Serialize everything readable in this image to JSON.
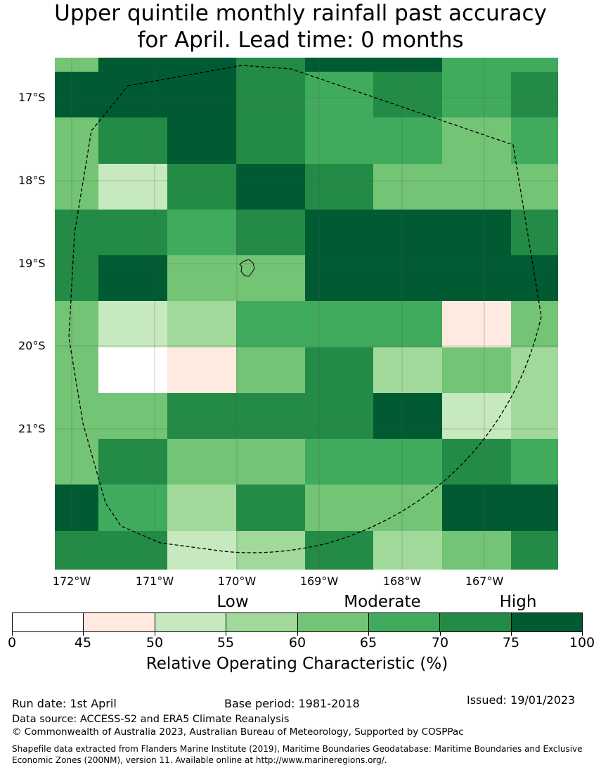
{
  "title_line1": "Upper quintile monthly rainfall past accuracy",
  "title_line2": "for April. Lead time: 0 months",
  "map": {
    "lat_labels": [
      "17°S",
      "18°S",
      "19°S",
      "20°S",
      "21°S"
    ],
    "lon_labels": [
      "172°W",
      "171°W",
      "170°W",
      "169°W",
      "168°W",
      "167°W"
    ],
    "bins": [
      "0-45",
      "45-50",
      "50-55",
      "55-60",
      "60-65",
      "65-70",
      "70-75",
      "75-100"
    ],
    "grid_cells": [
      [
        4,
        7,
        7,
        6,
        7,
        7,
        5,
        5
      ],
      [
        7,
        7,
        7,
        6,
        5,
        6,
        5,
        6
      ],
      [
        4,
        6,
        7,
        6,
        5,
        5,
        4,
        5
      ],
      [
        4,
        2,
        6,
        7,
        6,
        4,
        4,
        4
      ],
      [
        6,
        6,
        5,
        6,
        7,
        7,
        7,
        6
      ],
      [
        6,
        7,
        4,
        4,
        7,
        7,
        7,
        7
      ],
      [
        4,
        2,
        3,
        5,
        5,
        5,
        1,
        4
      ],
      [
        4,
        0,
        1,
        4,
        6,
        3,
        4,
        3
      ],
      [
        4,
        4,
        6,
        6,
        6,
        7,
        2,
        3
      ],
      [
        4,
        6,
        4,
        4,
        5,
        5,
        6,
        5
      ],
      [
        7,
        5,
        3,
        6,
        4,
        4,
        7,
        7
      ],
      [
        6,
        6,
        2,
        3,
        6,
        3,
        4,
        6
      ]
    ]
  },
  "colorbar": {
    "categories": [
      "Low",
      "Moderate",
      "High"
    ],
    "colors": [
      "#ffffff",
      "#feeae1",
      "#c7e9c0",
      "#a1d99b",
      "#74c476",
      "#41ab5d",
      "#238b45",
      "#005a32"
    ],
    "ticks": [
      "0",
      "45",
      "50",
      "55",
      "60",
      "65",
      "70",
      "75",
      "100"
    ],
    "label": "Relative Operating Characteristic (%)"
  },
  "footer": {
    "run_date": "Run date: 1st April",
    "base_period": "Base period: 1981-2018",
    "issued": "Issued: 19/01/2023",
    "data_source": "Data source: ACCESS-S2 and ERA5 Climate Reanalysis",
    "copyright": "© Commonwealth of Australia 2023, Australian Bureau of Meteorology, Supported by COSPPac",
    "shapefile": "Shapefile data extracted from Flanders Marine Institute (2019), Maritime Boundaries Geodatabase: Maritime Boundaries and Exclusive Economic Zones (200NM), version 11. Available online at http://www.marineregions.org/."
  }
}
